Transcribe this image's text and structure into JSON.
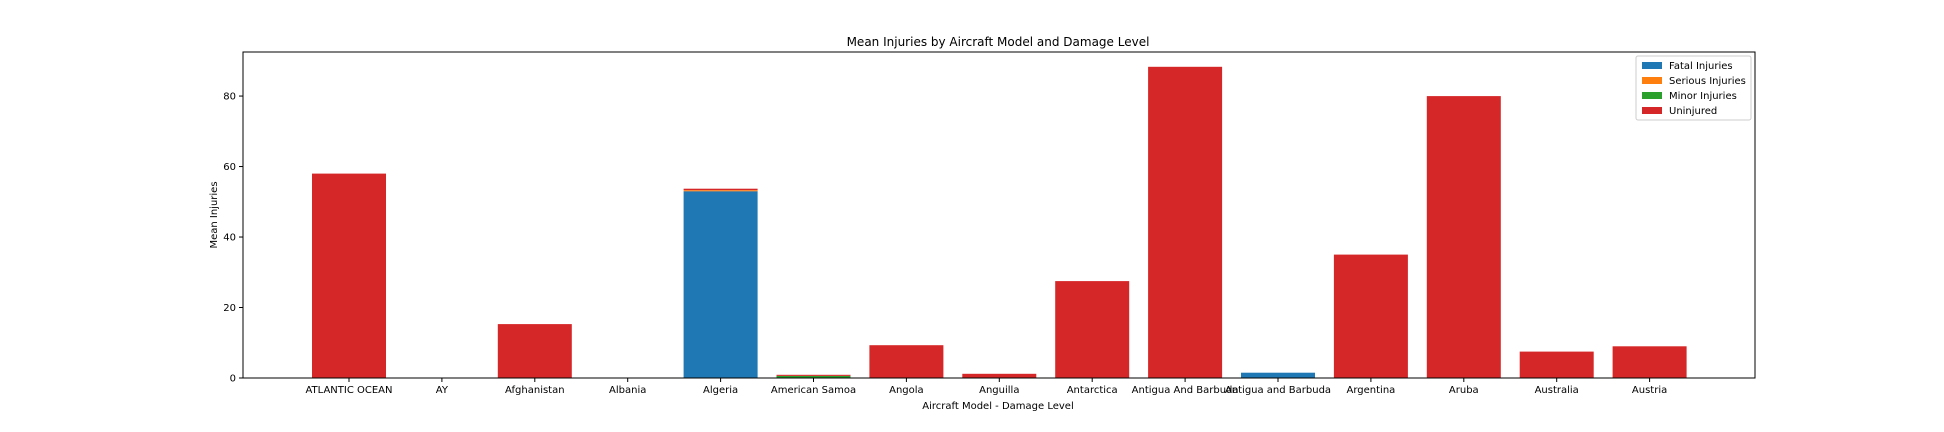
{
  "chart_data": {
    "type": "bar",
    "stacked": true,
    "title": "Mean Injuries by Aircraft Model and Damage Level",
    "xlabel": "Aircraft Model - Damage Level",
    "ylabel": "Mean Injuries",
    "ylim": [
      0,
      92.5
    ],
    "yticks": [
      0,
      20,
      40,
      60,
      80
    ],
    "grid": false,
    "legend_position": "top-right",
    "categories": [
      "ATLANTIC OCEAN",
      "AY",
      "Afghanistan",
      "Albania",
      "Algeria",
      "American Samoa",
      "Angola",
      "Anguilla",
      "Antarctica",
      "Antigua And Barbuda",
      "Antigua and Barbuda",
      "Argentina",
      "Aruba",
      "Australia",
      "Austria"
    ],
    "series": [
      {
        "name": "Fatal Injuries",
        "color": "#1f77b4",
        "values": [
          0,
          0,
          0,
          0,
          53.0,
          0,
          0,
          0,
          0,
          0,
          1.5,
          0,
          0,
          0,
          0
        ]
      },
      {
        "name": "Serious Injuries",
        "color": "#ff7f0e",
        "values": [
          0,
          0,
          0,
          0,
          0.3,
          0,
          0,
          0,
          0,
          0,
          0,
          0,
          0,
          0,
          0
        ]
      },
      {
        "name": "Minor Injuries",
        "color": "#2ca02c",
        "values": [
          0,
          0,
          0,
          0,
          0,
          0.6,
          0,
          0,
          0,
          0,
          0,
          0,
          0,
          0,
          0
        ]
      },
      {
        "name": "Uninjured",
        "color": "#d62728",
        "values": [
          58.0,
          0,
          15.3,
          0,
          0.4,
          0.3,
          9.3,
          1.2,
          27.5,
          88.3,
          0,
          35.0,
          80.0,
          7.5,
          9.0
        ]
      }
    ]
  }
}
